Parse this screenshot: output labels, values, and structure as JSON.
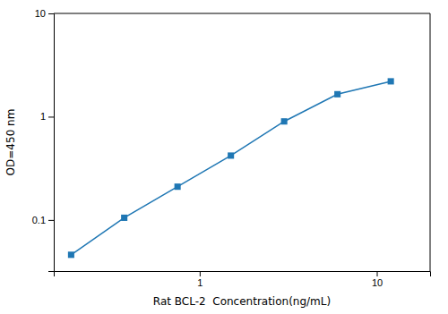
{
  "chart_data": {
    "type": "line",
    "x": [
      0.188,
      0.375,
      0.75,
      1.5,
      3.0,
      6.0,
      12.0
    ],
    "values": [
      0.046,
      0.105,
      0.21,
      0.42,
      0.9,
      1.65,
      2.2
    ],
    "xlabel": "Rat BCL-2  Concentration(ng/mL)",
    "ylabel": "OD=450 nm",
    "log": true,
    "xlim": [
      0.15,
      20
    ],
    "ylim": [
      0.032,
      10
    ],
    "xticks": [
      1,
      10
    ],
    "yticks": [
      0.1,
      1,
      10
    ],
    "marker": "square"
  }
}
